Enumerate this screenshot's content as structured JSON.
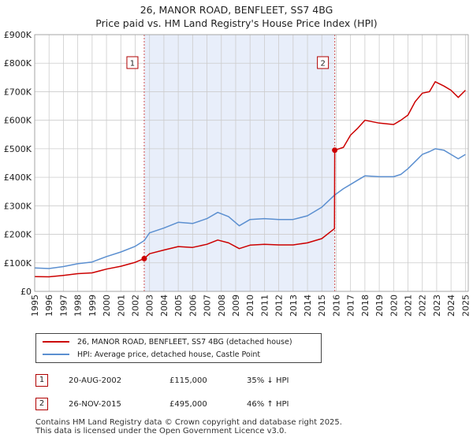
{
  "title": {
    "line1": "26, MANOR ROAD, BENFLEET, SS7 4BG",
    "line2": "Price paid vs. HM Land Registry's House Price Index (HPI)"
  },
  "chart_data": {
    "type": "line",
    "title": "26, MANOR ROAD, BENFLEET, SS7 4BG — Price paid vs. HM Land Registry's House Price Index (HPI)",
    "xlabel": "",
    "ylabel": "",
    "xlim": [
      1995,
      2025.2
    ],
    "ylim": [
      0,
      900000
    ],
    "x_ticks": [
      1995,
      1996,
      1997,
      1998,
      1999,
      2000,
      2001,
      2002,
      2003,
      2004,
      2005,
      2006,
      2007,
      2008,
      2009,
      2010,
      2011,
      2012,
      2013,
      2014,
      2015,
      2016,
      2017,
      2018,
      2019,
      2020,
      2021,
      2022,
      2023,
      2024,
      2025
    ],
    "y_ticks": [
      {
        "value": 0,
        "label": "£0"
      },
      {
        "value": 100000,
        "label": "£100K"
      },
      {
        "value": 200000,
        "label": "£200K"
      },
      {
        "value": 300000,
        "label": "£300K"
      },
      {
        "value": 400000,
        "label": "£400K"
      },
      {
        "value": 500000,
        "label": "£500K"
      },
      {
        "value": 600000,
        "label": "£600K"
      },
      {
        "value": 700000,
        "label": "£700K"
      },
      {
        "value": 800000,
        "label": "£800K"
      },
      {
        "value": 900000,
        "label": "£900K"
      }
    ],
    "grid": true,
    "shaded_period": {
      "from": 2002.63,
      "to": 2015.9
    },
    "series": [
      {
        "name": "26, MANOR ROAD, BENFLEET, SS7 4BG (detached house)",
        "color": "#cc0000",
        "x": [
          1995.0,
          1996.0,
          1997.0,
          1998.0,
          1999.0,
          2000.0,
          2001.0,
          2002.0,
          2002.63,
          2003.0,
          2004.0,
          2005.0,
          2006.0,
          2007.0,
          2007.75,
          2008.5,
          2009.25,
          2010.0,
          2011.0,
          2012.0,
          2013.0,
          2014.0,
          2015.0,
          2015.88,
          2015.9,
          2016.5,
          2017.0,
          2017.5,
          2018.0,
          2019.0,
          2020.0,
          2020.5,
          2021.0,
          2021.5,
          2022.0,
          2022.5,
          2022.9,
          2023.5,
          2024.0,
          2024.5,
          2025.0
        ],
        "values": [
          52000,
          51000,
          56000,
          62000,
          65000,
          78000,
          88000,
          102000,
          115000,
          132000,
          145000,
          157000,
          154000,
          165000,
          180000,
          170000,
          150000,
          162000,
          165000,
          163000,
          163000,
          170000,
          185000,
          220000,
          495000,
          505000,
          548000,
          572000,
          600000,
          590000,
          585000,
          600000,
          618000,
          665000,
          695000,
          700000,
          735000,
          720000,
          705000,
          680000,
          705000
        ]
      },
      {
        "name": "HPI: Average price, detached house, Castle Point",
        "color": "#5b8fd0",
        "x": [
          1995.0,
          1996.0,
          1997.0,
          1998.0,
          1999.0,
          2000.0,
          2001.0,
          2002.0,
          2002.63,
          2003.0,
          2004.0,
          2005.0,
          2006.0,
          2007.0,
          2007.75,
          2008.5,
          2009.25,
          2010.0,
          2011.0,
          2012.0,
          2013.0,
          2014.0,
          2015.0,
          2015.9,
          2016.5,
          2017.0,
          2017.5,
          2018.0,
          2019.0,
          2020.0,
          2020.5,
          2021.0,
          2021.5,
          2022.0,
          2022.5,
          2022.9,
          2023.5,
          2024.0,
          2024.5,
          2025.0
        ],
        "values": [
          82000,
          80000,
          87000,
          97000,
          103000,
          122000,
          138000,
          158000,
          178000,
          205000,
          222000,
          242000,
          238000,
          255000,
          277000,
          262000,
          230000,
          252000,
          255000,
          252000,
          252000,
          265000,
          295000,
          338000,
          360000,
          375000,
          390000,
          405000,
          402000,
          402000,
          410000,
          430000,
          455000,
          480000,
          490000,
          500000,
          495000,
          480000,
          465000,
          480000
        ]
      }
    ],
    "annotations": [
      {
        "label": "1",
        "x": 2002.63,
        "value": 115000
      },
      {
        "label": "2",
        "x": 2015.9,
        "value": 495000
      }
    ]
  },
  "legend": {
    "items": [
      {
        "label": "26, MANOR ROAD, BENFLEET, SS7 4BG (detached house)",
        "color": "#cc0000"
      },
      {
        "label": "HPI: Average price, detached house, Castle Point",
        "color": "#5b8fd0"
      }
    ]
  },
  "transactions": [
    {
      "num": "1",
      "date": "20-AUG-2002",
      "price": "£115,000",
      "hpi": "35% ↓ HPI"
    },
    {
      "num": "2",
      "date": "26-NOV-2015",
      "price": "£495,000",
      "hpi": "46% ↑ HPI"
    }
  ],
  "footer": {
    "line1": "Contains HM Land Registry data © Crown copyright and database right 2025.",
    "line2": "This data is licensed under the Open Government Licence v3.0."
  }
}
